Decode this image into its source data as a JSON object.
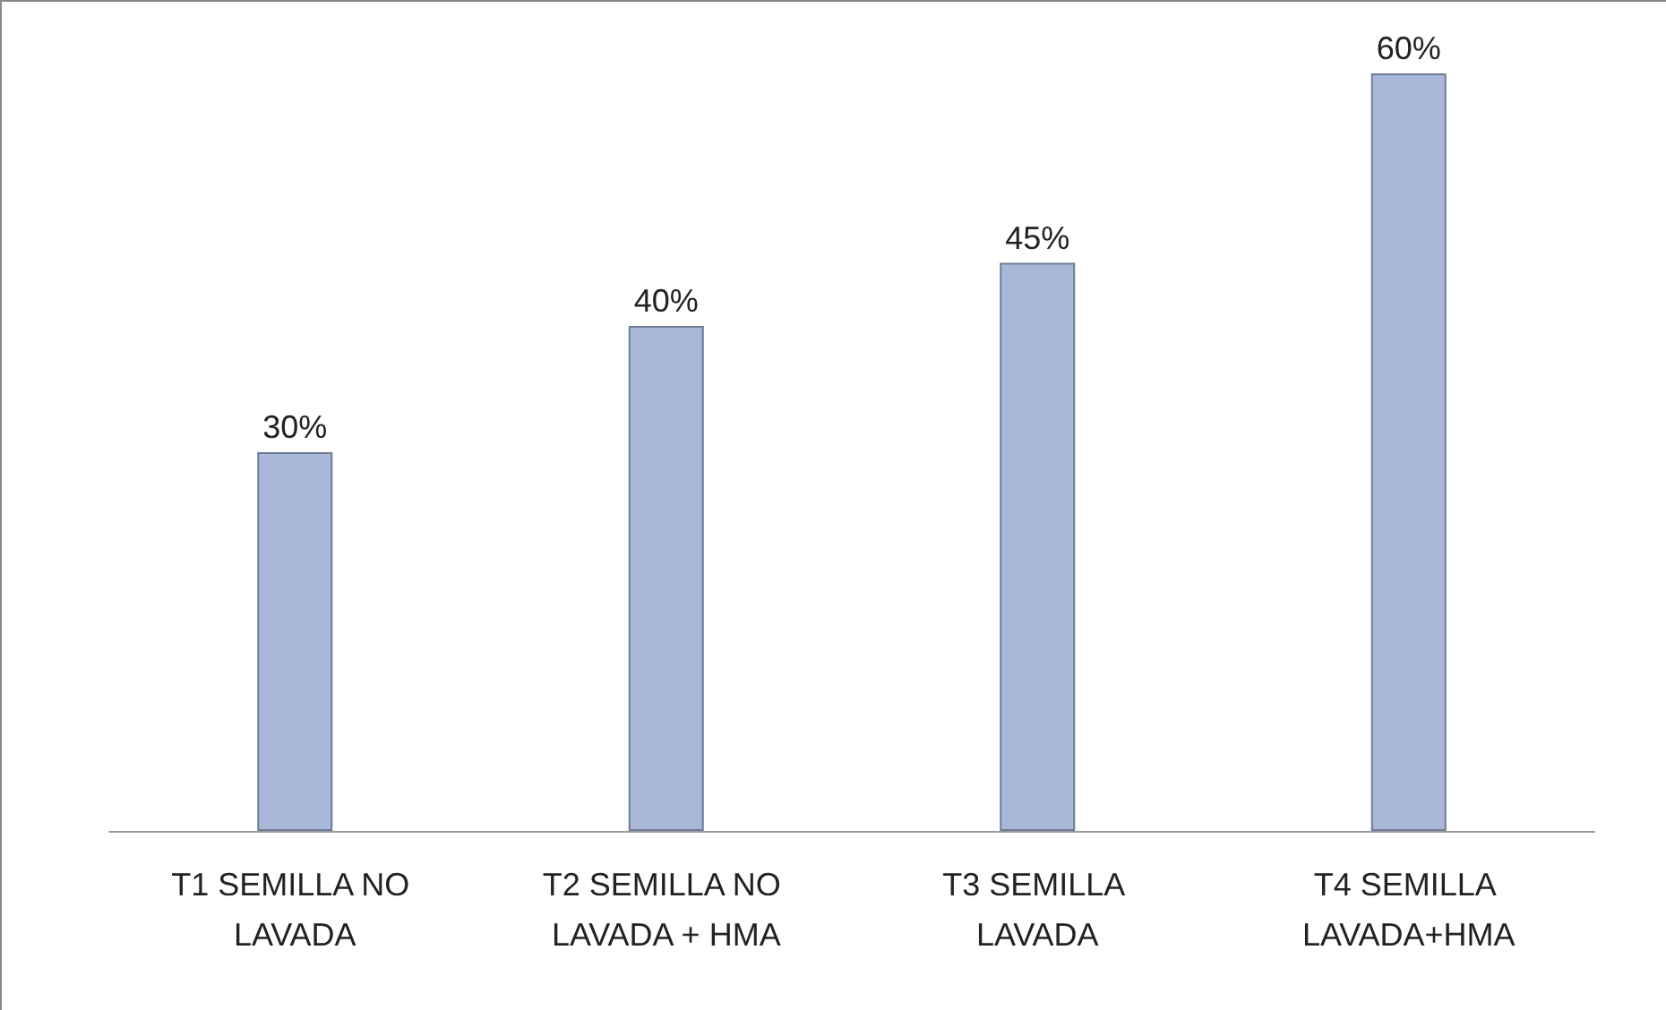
{
  "chart_data": {
    "type": "bar",
    "categories": [
      "T1 SEMILLA NO LAVADA",
      "T2 SEMILLA NO LAVADA + HMA",
      "T3 SEMILLA LAVADA",
      "T4 SEMILLA LAVADA+HMA"
    ],
    "values": [
      30,
      40,
      45,
      60
    ],
    "value_labels": [
      "30%",
      "40%",
      "45%",
      "60%"
    ],
    "color": "#a9b8d8"
  }
}
